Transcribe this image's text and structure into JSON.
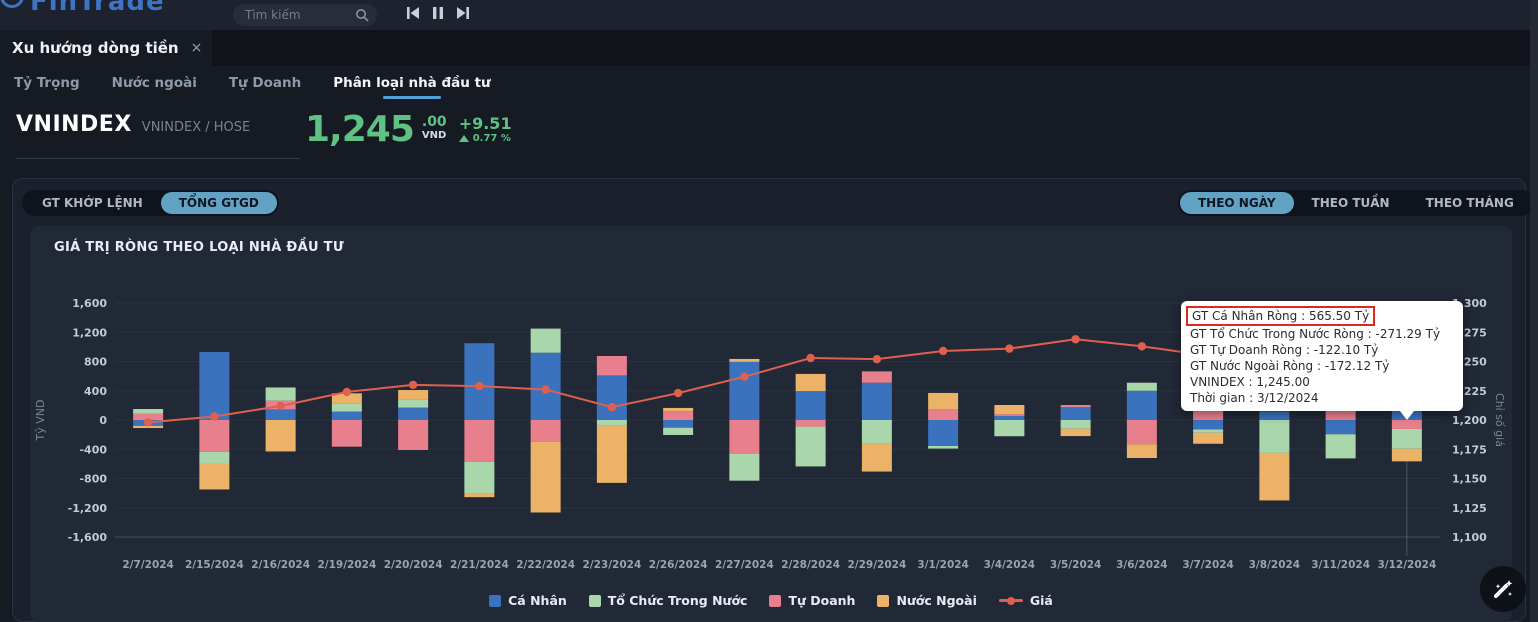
{
  "topbar": {
    "logo": "FinTrade",
    "search_placeholder": "Tìm kiếm"
  },
  "tabs": {
    "main_tab": "Xu hướng dòng tiền",
    "close_glyph": "×",
    "sub_tabs": [
      "Tỷ Trọng",
      "Nước ngoài",
      "Tự Doanh",
      "Phân loại nhà đầu tư"
    ],
    "active_sub_tab": "Phân loại nhà đầu tư"
  },
  "instrument": {
    "name": "VNINDEX",
    "subtitle": "VNINDEX / HOSE",
    "price_int": "1,245",
    "price_dec": ".00",
    "currency": "VND",
    "change": "+9.51",
    "change_pct": "0.77 %"
  },
  "toolbar": {
    "view_modes": [
      {
        "label": "GT KHỚP LỆNH",
        "active": false
      },
      {
        "label": "TỔNG GTGD",
        "active": true
      }
    ],
    "periods": [
      {
        "label": "THEO NGÀY",
        "active": true
      },
      {
        "label": "THEO TUẦN",
        "active": false
      },
      {
        "label": "THEO THÁNG",
        "active": false
      }
    ]
  },
  "chart_data": {
    "type": "bar",
    "subtype": "stacked-bar-with-line-overlay",
    "title": "GIÁ TRỊ RÒNG THEO LOẠI NHÀ ĐẦU TƯ",
    "xlabel": "",
    "ylabel_left": "Tỷ VND",
    "ylabel_right": "Chỉ số giá",
    "ylim_left": [
      -1600,
      1600
    ],
    "ylim_right": [
      1100,
      1300
    ],
    "yticks_left": [
      1600,
      1200,
      800,
      400,
      0,
      -400,
      -800,
      -1200,
      -1600
    ],
    "yticks_right": [
      1300,
      1275,
      1250,
      1225,
      1200,
      1175,
      1150,
      1125,
      1100
    ],
    "grid": true,
    "legend_position": "bottom-center",
    "active_index": 19,
    "categories": [
      "2/7/2024",
      "2/15/2024",
      "2/16/2024",
      "2/19/2024",
      "2/20/2024",
      "2/21/2024",
      "2/22/2024",
      "2/23/2024",
      "2/26/2024",
      "2/27/2024",
      "2/28/2024",
      "2/29/2024",
      "3/1/2024",
      "3/4/2024",
      "3/5/2024",
      "3/6/2024",
      "3/7/2024",
      "3/8/2024",
      "3/11/2024",
      "3/12/2024"
    ],
    "series": [
      {
        "name": "Cá Nhân",
        "type": "bar",
        "color": "#3a72bd",
        "values": [
          -80,
          930,
          145,
          115,
          170,
          1050,
          920,
          610,
          -105,
          795,
          395,
          510,
          -355,
          55,
          175,
          400,
          -130,
          120,
          -195,
          565.5
        ]
      },
      {
        "name": "Tổ Chức Trong Nước",
        "type": "bar",
        "color": "#a9d7ab",
        "values": [
          65,
          -160,
          180,
          115,
          105,
          -440,
          330,
          -80,
          -100,
          -370,
          -545,
          -315,
          -36,
          -222,
          -120,
          110,
          -45,
          -450,
          -330,
          -271.29
        ]
      },
      {
        "name": "Tự Doanh",
        "type": "bar",
        "color": "#e87f8d",
        "values": [
          85,
          -435,
          120,
          -365,
          -410,
          -570,
          -300,
          265,
          120,
          -460,
          -90,
          155,
          150,
          25,
          30,
          -333,
          145,
          0,
          130,
          -122.1
        ]
      },
      {
        "name": "Nước Ngoài",
        "type": "bar",
        "color": "#ecb368",
        "values": [
          -30,
          -355,
          -430,
          135,
          135,
          -45,
          -965,
          -780,
          45,
          40,
          235,
          -390,
          220,
          125,
          -100,
          -187,
          -150,
          -650,
          0,
          -172.12
        ]
      },
      {
        "name": "Giá",
        "type": "line",
        "color": "#e0604d",
        "yaxis": "right",
        "values": [
          1198,
          1203,
          1212,
          1224,
          1230,
          1229,
          1226,
          1211,
          1223,
          1237,
          1253,
          1252,
          1259,
          1261,
          1269,
          1263,
          1255,
          1240,
          1242,
          1245
        ]
      }
    ]
  },
  "tooltip": {
    "rows": [
      {
        "text": "GT Cá Nhân Ròng  : 565.50 Tỷ",
        "highlight": true
      },
      {
        "text": "GT Tổ Chức Trong Nước Ròng : -271.29 Tỷ",
        "highlight": false
      },
      {
        "text": "GT Tự Doanh Ròng : -122.10 Tỷ",
        "highlight": false
      },
      {
        "text": "GT Nước Ngoài Ròng : -172.12 Tỷ",
        "highlight": false
      },
      {
        "text": "VNINDEX : 1,245.00",
        "highlight": false
      },
      {
        "text": "Thời gian : 3/12/2024",
        "highlight": false
      }
    ]
  },
  "colors": {
    "accent_pill": "#62a2c4",
    "positive_green": "#5ec284",
    "price_line": "#e0604d",
    "tab_underline": "#4da0d8",
    "highlight_red": "#e0271b"
  }
}
